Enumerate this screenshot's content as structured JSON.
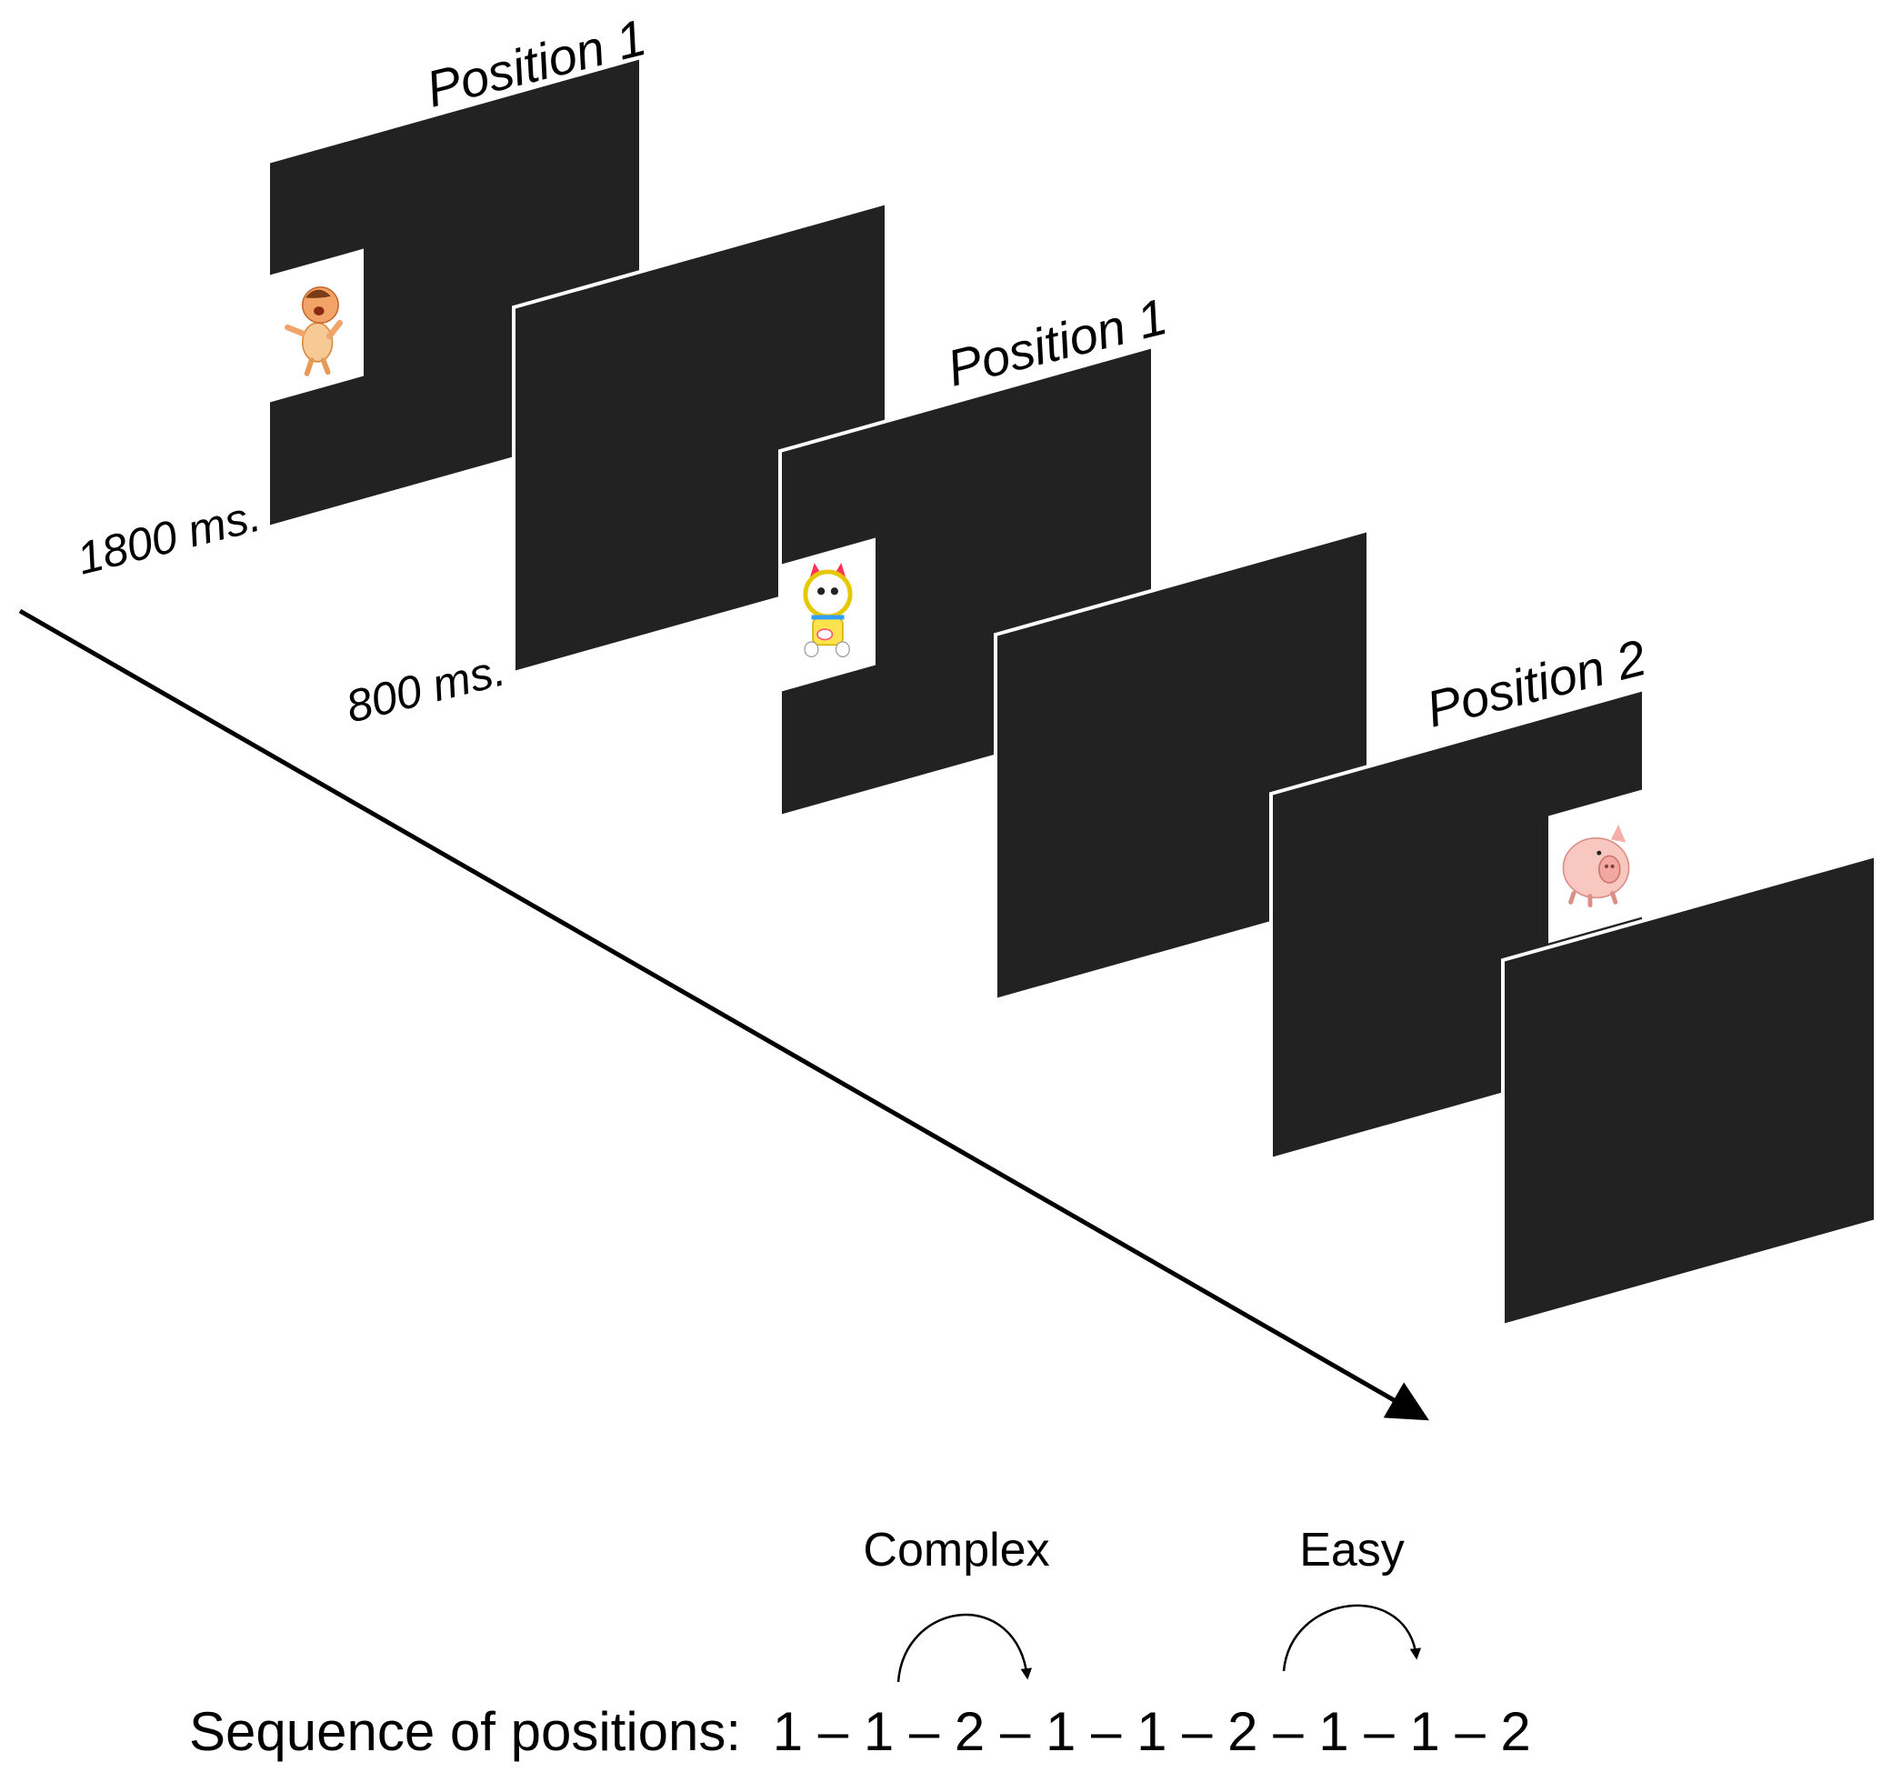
{
  "colors": {
    "screen_fill": "#222222",
    "screen_border": "#ffffff",
    "background": "#ffffff",
    "line": "#000000"
  },
  "screens": [
    {
      "kind": "stimulus",
      "label": "Position 1",
      "stimulus": "boy-cartoon",
      "stimulus_side": "left"
    },
    {
      "kind": "blank"
    },
    {
      "kind": "stimulus",
      "label": "Position 1",
      "stimulus": "cat-robot-cartoon",
      "stimulus_side": "left"
    },
    {
      "kind": "blank"
    },
    {
      "kind": "stimulus",
      "label": "Position 2",
      "stimulus": "pig-cartoon",
      "stimulus_side": "right"
    },
    {
      "kind": "blank"
    }
  ],
  "durations": {
    "stimulus": "1800 ms.",
    "blank": "800 ms."
  },
  "transitions": {
    "complex_label": "Complex",
    "easy_label": "Easy"
  },
  "sequence": {
    "prefix": "Sequence of positions:",
    "positions": [
      1,
      1,
      2,
      1,
      1,
      2,
      1,
      1,
      2
    ],
    "separator": "–"
  }
}
